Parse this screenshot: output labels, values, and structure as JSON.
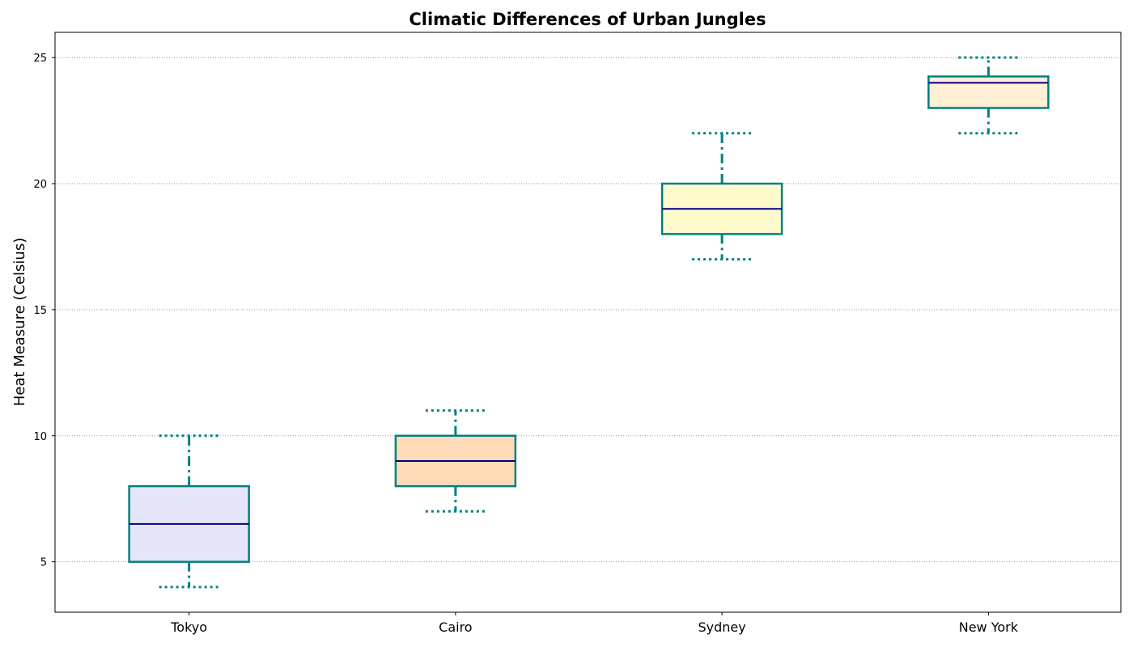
{
  "chart_data": {
    "type": "box",
    "title": "Climatic Differences of Urban Jungles",
    "xlabel": "",
    "ylabel": "Heat Measure (Celsius)",
    "ylim": [
      3,
      26
    ],
    "yticks": [
      5,
      10,
      15,
      20,
      25
    ],
    "grid": {
      "axis": "y",
      "style": "dotted",
      "color": "#d9569b"
    },
    "categories": [
      "Tokyo",
      "Cairo",
      "Sydney",
      "New York"
    ],
    "boxes": [
      {
        "category": "Tokyo",
        "whisker_low": 4,
        "q1": 5,
        "median": 6.5,
        "q3": 8,
        "whisker_high": 10,
        "fill": "#e6e6fa"
      },
      {
        "category": "Cairo",
        "whisker_low": 7,
        "q1": 8,
        "median": 9,
        "q3": 10,
        "whisker_high": 11,
        "fill": "#ffdab9"
      },
      {
        "category": "Sydney",
        "whisker_low": 17,
        "q1": 18,
        "median": 19,
        "q3": 20,
        "whisker_high": 22,
        "fill": "#fffacd"
      },
      {
        "category": "New York",
        "whisker_low": 22,
        "q1": 23,
        "median": 24,
        "q3": 24.25,
        "whisker_high": 25,
        "fill": "#ffefd5"
      }
    ],
    "colors": {
      "box_edge": "#008080",
      "median": "#000080",
      "whisker": "#008080",
      "cap": "#008080"
    }
  }
}
